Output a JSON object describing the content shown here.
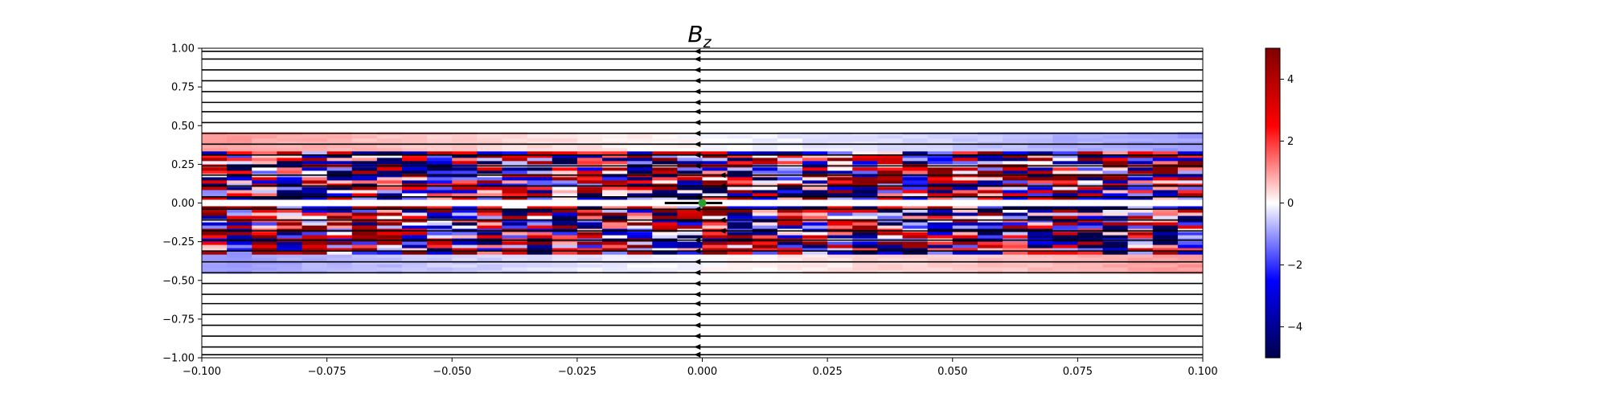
{
  "chart_data": {
    "type": "heatmap",
    "title": {
      "base": "B",
      "subscript": "z"
    },
    "xlabel": "",
    "ylabel": "",
    "xlim": [
      -0.1,
      0.1
    ],
    "ylim": [
      -1.0,
      1.0
    ],
    "x_ticks": [
      -0.1,
      -0.075,
      -0.05,
      -0.025,
      0.0,
      0.025,
      0.05,
      0.075,
      0.1
    ],
    "x_tick_labels": [
      "−0.100",
      "−0.075",
      "−0.050",
      "−0.025",
      "0.000",
      "0.025",
      "0.050",
      "0.075",
      "0.100"
    ],
    "y_ticks": [
      1.0,
      0.75,
      0.5,
      0.25,
      0.0,
      -0.25,
      -0.5,
      -0.75,
      -1.0
    ],
    "y_tick_labels": [
      "1.00",
      "0.75",
      "0.50",
      "0.25",
      "0.00",
      "−0.25",
      "−0.50",
      "−0.75",
      "−1.00"
    ],
    "colormap": "seismic",
    "colors": {
      "neg": "#00004c",
      "mid": "#ffffff",
      "pos": "#800000",
      "marker": "#2ca02c",
      "line": "#000000"
    },
    "colorbar": {
      "range": [
        -5,
        5
      ],
      "ticks": [
        4,
        2,
        0,
        -2,
        -4
      ],
      "tick_labels": [
        "4",
        "2",
        "0",
        "−2",
        "−4"
      ]
    },
    "grid": false,
    "field_lines": {
      "direction": "leftward",
      "y_values": [
        0.98,
        0.93,
        0.86,
        0.79,
        0.72,
        0.65,
        0.59,
        0.52,
        0.45,
        0.38,
        0.31,
        0.24,
        0.18,
        0.11,
        0.04,
        -0.04,
        -0.11,
        -0.18,
        -0.24,
        -0.31,
        -0.38,
        -0.45,
        -0.52,
        -0.59,
        -0.65,
        -0.72,
        -0.79,
        -0.86,
        -0.93,
        -0.98
      ]
    },
    "marker": {
      "x": 0.0,
      "y": 0.0
    }
  }
}
